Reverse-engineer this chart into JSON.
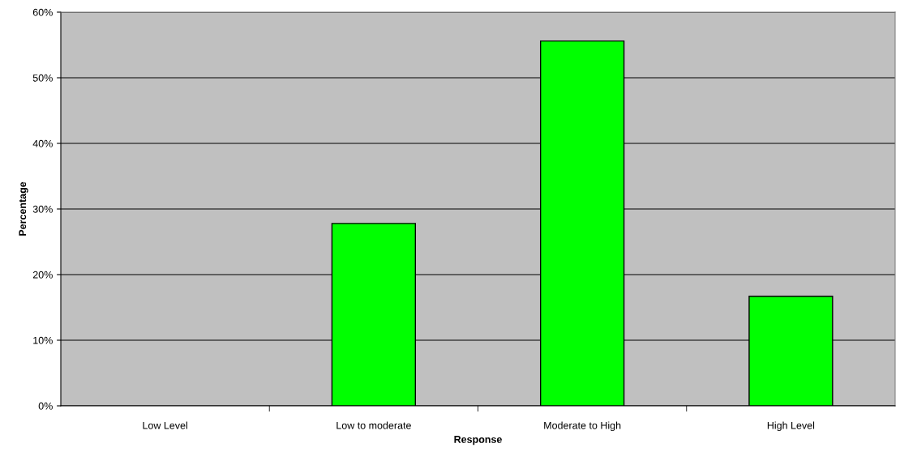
{
  "chart_data": {
    "type": "bar",
    "xlabel": "Response",
    "ylabel": "Percentage",
    "categories": [
      "Low Level",
      "Low to moderate",
      "Moderate to High",
      "High Level"
    ],
    "values": [
      0,
      27.8,
      55.6,
      16.7
    ],
    "color": "#00ff00",
    "ylim": [
      0,
      60
    ],
    "yticks": [
      {
        "value": 0,
        "label": "0%"
      },
      {
        "value": 10,
        "label": "10%"
      },
      {
        "value": 20,
        "label": "20%"
      },
      {
        "value": 30,
        "label": "30%"
      },
      {
        "value": 40,
        "label": "40%"
      },
      {
        "value": 50,
        "label": "50%"
      },
      {
        "value": 60,
        "label": "60%"
      }
    ],
    "grid": "y",
    "legend": false
  }
}
